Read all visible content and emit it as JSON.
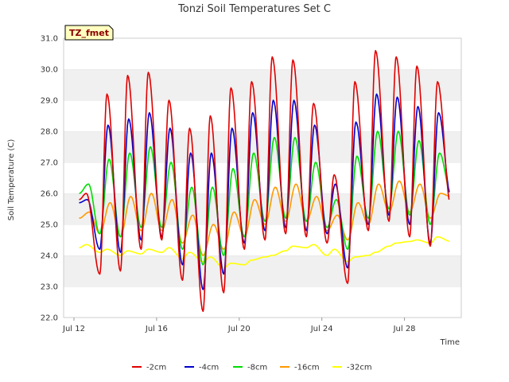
{
  "chart_data": {
    "type": "line",
    "title": "Tonzi Soil Temperatures Set C",
    "xlabel": "Time",
    "ylabel": "Soil Temperature (C)",
    "annotation": "TZ_fmet",
    "xlim": [
      "Jul 11 12:00",
      "Jul 30 18:00"
    ],
    "ylim": [
      22.0,
      31.0
    ],
    "x_ticks": [
      "Jul 12",
      "Jul 16",
      "Jul 20",
      "Jul 24",
      "Jul 28"
    ],
    "y_ticks": [
      "22.0",
      "23.0",
      "24.0",
      "25.0",
      "26.0",
      "27.0",
      "28.0",
      "29.0",
      "30.0",
      "31.0"
    ],
    "grid": "horizontal bands",
    "legend_position": "bottom",
    "colors": {
      "band": "#f0f0f0",
      "axis": "#cccccc"
    },
    "x_days": [
      "Jul 12",
      "Jul 13",
      "Jul 14",
      "Jul 15",
      "Jul 16",
      "Jul 17",
      "Jul 18",
      "Jul 19",
      "Jul 20",
      "Jul 21",
      "Jul 22",
      "Jul 23",
      "Jul 24",
      "Jul 25",
      "Jul 26",
      "Jul 27",
      "Jul 28",
      "Jul 29",
      "Jul 30"
    ],
    "series": [
      {
        "name": "-2cm",
        "color": "#e00000",
        "daily_max": [
          26.0,
          29.2,
          29.8,
          29.9,
          29.0,
          28.1,
          28.5,
          29.4,
          29.6,
          30.4,
          30.3,
          28.9,
          26.6,
          29.6,
          30.6,
          30.4,
          30.1,
          29.6,
          26.0
        ],
        "daily_min": [
          25.8,
          23.4,
          23.5,
          24.2,
          24.5,
          23.2,
          22.2,
          22.8,
          24.2,
          24.5,
          24.7,
          24.6,
          24.4,
          23.1,
          24.8,
          25.1,
          24.6,
          24.3,
          25.6
        ]
      },
      {
        "name": "-4cm",
        "color": "#0000cc",
        "daily_max": [
          25.8,
          28.2,
          28.4,
          28.6,
          28.1,
          27.3,
          27.3,
          28.1,
          28.6,
          29.0,
          29.0,
          28.2,
          26.3,
          28.3,
          29.2,
          29.1,
          28.8,
          28.6,
          26.0
        ],
        "daily_min": [
          25.7,
          24.2,
          24.1,
          24.5,
          24.6,
          23.7,
          22.9,
          23.4,
          24.4,
          24.8,
          24.9,
          24.8,
          24.7,
          23.6,
          25.0,
          25.3,
          25.0,
          24.4,
          25.9
        ]
      },
      {
        "name": "-8cm",
        "color": "#00dd00",
        "daily_max": [
          26.3,
          27.1,
          27.3,
          27.5,
          27.0,
          26.2,
          26.2,
          26.8,
          27.3,
          27.8,
          27.8,
          27.0,
          25.8,
          27.2,
          28.0,
          28.0,
          27.7,
          27.3,
          26.3
        ],
        "daily_min": [
          26.0,
          24.7,
          24.6,
          24.9,
          24.9,
          24.2,
          23.7,
          24.0,
          24.6,
          25.1,
          25.2,
          25.1,
          24.9,
          24.2,
          25.2,
          25.5,
          25.3,
          25.0,
          26.0
        ]
      },
      {
        "name": "-16cm",
        "color": "#ff9900",
        "daily_max": [
          25.4,
          25.7,
          25.9,
          26.0,
          25.8,
          25.3,
          25.0,
          25.4,
          25.8,
          26.2,
          26.3,
          25.9,
          25.3,
          25.7,
          26.3,
          26.4,
          26.3,
          26.0,
          26.0
        ],
        "daily_min": [
          25.2,
          24.7,
          24.6,
          24.8,
          24.8,
          24.4,
          24.0,
          24.2,
          24.6,
          25.0,
          25.1,
          25.1,
          24.8,
          24.5,
          25.0,
          25.4,
          25.4,
          25.2,
          25.9
        ]
      },
      {
        "name": "-32cm",
        "color": "#ffff00",
        "daily_max": [
          24.35,
          24.2,
          24.15,
          24.2,
          24.25,
          24.1,
          23.95,
          23.75,
          23.85,
          24.0,
          24.3,
          24.35,
          24.2,
          23.95,
          24.1,
          24.4,
          24.5,
          24.6,
          24.45
        ],
        "daily_min": [
          24.25,
          24.1,
          24.0,
          24.05,
          24.1,
          23.9,
          23.8,
          23.6,
          23.7,
          23.95,
          24.15,
          24.25,
          24.0,
          23.8,
          24.0,
          24.3,
          24.45,
          24.4,
          24.45
        ]
      }
    ]
  }
}
